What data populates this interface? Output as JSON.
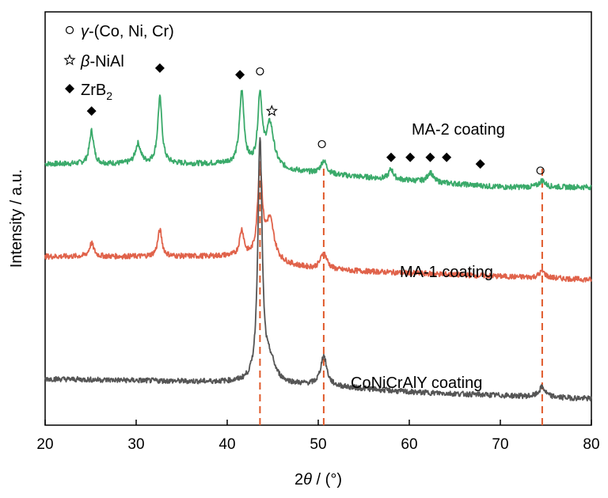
{
  "chart_data": {
    "type": "line",
    "title": "",
    "xlabel": "2θ / (°)",
    "xlabel_parts": {
      "prefix": "2",
      "symbol": "θ",
      "suffix": " / (°)"
    },
    "ylabel": "Intensity / a.u.",
    "xlim": [
      20,
      80
    ],
    "xticks": [
      "20",
      "30",
      "40",
      "50",
      "60",
      "70",
      "80"
    ],
    "y_ticks_shown": false,
    "grid": false,
    "legend_position": "top-left",
    "legend": [
      {
        "marker": "circle-open",
        "prefix": "",
        "symbol": "γ",
        "text": "-(Co, Ni, Cr)"
      },
      {
        "marker": "star-open",
        "prefix": "",
        "symbol": "β",
        "text": "-NiAl"
      },
      {
        "marker": "diamond-filled",
        "prefix": "ZrB",
        "symbol": "",
        "text": "",
        "subscript": "2"
      }
    ],
    "reference_lines": {
      "x": [
        43.6,
        50.6,
        74.6
      ],
      "color": "#e05a2b",
      "style": "dashed"
    },
    "series": [
      {
        "name": "MA-2 coating",
        "color": "#3aaa6a",
        "baseline": [
          [
            20,
            79
          ],
          [
            40,
            79
          ],
          [
            50,
            76
          ],
          [
            60,
            74
          ],
          [
            70,
            72
          ],
          [
            80,
            72
          ]
        ],
        "peaks": [
          {
            "x": 25.1,
            "h": 10,
            "w": 0.28
          },
          {
            "x": 30.2,
            "h": 6,
            "w": 0.35
          },
          {
            "x": 32.6,
            "h": 20,
            "w": 0.28
          },
          {
            "x": 41.6,
            "h": 22,
            "w": 0.3
          },
          {
            "x": 43.6,
            "h": 21,
            "w": 0.28
          },
          {
            "x": 44.7,
            "h": 13,
            "w": 0.5
          },
          {
            "x": 50.6,
            "h": 4,
            "w": 0.4
          },
          {
            "x": 58.0,
            "h": 3,
            "w": 0.3
          },
          {
            "x": 62.3,
            "h": 3,
            "w": 0.35
          },
          {
            "x": 74.6,
            "h": 2,
            "w": 0.4
          }
        ],
        "label": "MA-2 coating"
      },
      {
        "name": "MA-1 coating",
        "color": "#e0624a",
        "baseline": [
          [
            20,
            51
          ],
          [
            40,
            51
          ],
          [
            50,
            47
          ],
          [
            60,
            46
          ],
          [
            70,
            45
          ],
          [
            80,
            44
          ]
        ],
        "peaks": [
          {
            "x": 25.1,
            "h": 4,
            "w": 0.3
          },
          {
            "x": 32.6,
            "h": 8,
            "w": 0.28
          },
          {
            "x": 41.6,
            "h": 8,
            "w": 0.3
          },
          {
            "x": 43.6,
            "h": 28,
            "w": 0.3
          },
          {
            "x": 44.7,
            "h": 12,
            "w": 0.55
          },
          {
            "x": 50.6,
            "h": 5,
            "w": 0.45
          },
          {
            "x": 74.6,
            "h": 2,
            "w": 0.4
          }
        ],
        "label": "MA-1 coating"
      },
      {
        "name": "CoNiCrAlY coating",
        "color": "#555555",
        "baseline": [
          [
            20,
            14
          ],
          [
            40,
            13
          ],
          [
            50,
            12
          ],
          [
            60,
            10
          ],
          [
            70,
            9
          ],
          [
            80,
            8
          ]
        ],
        "peaks": [
          {
            "x": 43.6,
            "h": 73,
            "w": 0.28
          },
          {
            "x": 44.7,
            "h": 6,
            "w": 0.7
          },
          {
            "x": 50.6,
            "h": 9,
            "w": 0.4
          },
          {
            "x": 74.6,
            "h": 3,
            "w": 0.4
          }
        ],
        "label": "CoNiCrAlY coating"
      }
    ],
    "markers": [
      {
        "x": 25.1,
        "y": 95,
        "type": "diamond-filled"
      },
      {
        "x": 32.6,
        "y": 108,
        "type": "diamond-filled"
      },
      {
        "x": 41.4,
        "y": 106,
        "type": "diamond-filled"
      },
      {
        "x": 43.6,
        "y": 107,
        "type": "circle-open"
      },
      {
        "x": 44.9,
        "y": 95,
        "type": "star-open"
      },
      {
        "x": 50.4,
        "y": 85,
        "type": "circle-open"
      },
      {
        "x": 58.0,
        "y": 81,
        "type": "diamond-filled"
      },
      {
        "x": 60.1,
        "y": 81,
        "type": "diamond-filled"
      },
      {
        "x": 62.3,
        "y": 81,
        "type": "diamond-filled"
      },
      {
        "x": 64.1,
        "y": 81,
        "type": "diamond-filled"
      },
      {
        "x": 67.8,
        "y": 79,
        "type": "diamond-filled"
      },
      {
        "x": 74.4,
        "y": 77,
        "type": "circle-open"
      }
    ]
  }
}
